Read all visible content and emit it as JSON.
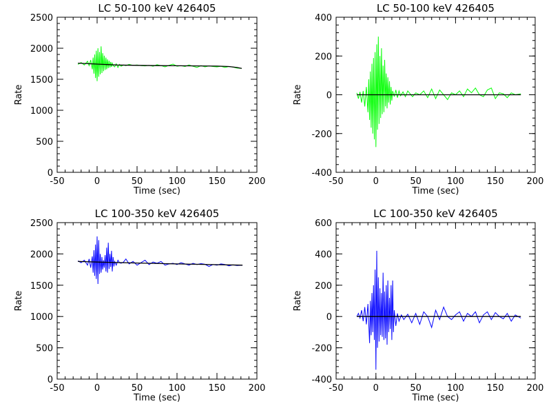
{
  "chart_data": [
    {
      "type": "line",
      "title": "LC 50-100 keV  426405",
      "xlabel": "Time (sec)",
      "ylabel": "Rate",
      "xlim": [
        -50,
        200
      ],
      "ylim": [
        0,
        2500
      ],
      "xticks": [
        -50,
        0,
        50,
        100,
        150,
        200
      ],
      "yticks": [
        0,
        500,
        1000,
        1500,
        2000,
        2500
      ],
      "series": [
        {
          "color": "#00ff00",
          "x": [
            -24,
            -20,
            -16,
            -12,
            -10,
            -8,
            -6,
            -5,
            -4,
            -3,
            -2,
            -1,
            0,
            1,
            2,
            3,
            4,
            5,
            6,
            7,
            8,
            9,
            10,
            11,
            12,
            13,
            14,
            15,
            16,
            17,
            18,
            19,
            20,
            22,
            24,
            26,
            28,
            30,
            33,
            36,
            40,
            45,
            50,
            55,
            60,
            65,
            70,
            75,
            80,
            85,
            90,
            95,
            100,
            105,
            110,
            115,
            120,
            125,
            130,
            135,
            140,
            145,
            150,
            155,
            160,
            165,
            170,
            175,
            181
          ],
          "y": [
            1740,
            1770,
            1730,
            1790,
            1720,
            1810,
            1660,
            1850,
            1590,
            1900,
            1520,
            1960,
            1470,
            2000,
            1540,
            1940,
            1580,
            2030,
            1600,
            1920,
            1630,
            1880,
            1650,
            1850,
            1660,
            1820,
            1680,
            1800,
            1690,
            1780,
            1700,
            1760,
            1720,
            1700,
            1750,
            1690,
            1740,
            1710,
            1730,
            1720,
            1740,
            1725,
            1730,
            1720,
            1715,
            1725,
            1710,
            1735,
            1720,
            1700,
            1725,
            1745,
            1710,
            1720,
            1705,
            1730,
            1710,
            1690,
            1720,
            1700,
            1715,
            1705,
            1700,
            1710,
            1690,
            1705,
            1695,
            1680,
            1675
          ]
        },
        {
          "color": "#000000",
          "x": [
            -24,
            0,
            25,
            50,
            75,
            100,
            125,
            150,
            165,
            175,
            181
          ],
          "y": [
            1760,
            1745,
            1730,
            1725,
            1720,
            1718,
            1715,
            1712,
            1705,
            1690,
            1675
          ]
        }
      ]
    },
    {
      "type": "line",
      "title": "LC 50-100 keV  426405",
      "xlabel": "Time (sec)",
      "ylabel": "Rate",
      "xlim": [
        -50,
        200
      ],
      "ylim": [
        -400,
        400
      ],
      "xticks": [
        -50,
        0,
        50,
        100,
        150,
        200
      ],
      "yticks": [
        -400,
        -200,
        0,
        200,
        400
      ],
      "series": [
        {
          "color": "#00ff00",
          "x": [
            -24,
            -22,
            -20,
            -18,
            -16,
            -14,
            -12,
            -10,
            -9,
            -8,
            -7,
            -6,
            -5,
            -4,
            -3,
            -2,
            -1,
            0,
            1,
            2,
            3,
            4,
            5,
            6,
            7,
            8,
            9,
            10,
            11,
            12,
            13,
            14,
            15,
            16,
            17,
            18,
            19,
            20,
            21,
            23,
            25,
            27,
            29,
            31,
            34,
            37,
            40,
            43,
            46,
            50,
            55,
            60,
            65,
            70,
            75,
            80,
            85,
            90,
            95,
            100,
            105,
            110,
            115,
            120,
            125,
            130,
            135,
            140,
            145,
            150,
            155,
            160,
            165,
            170,
            175,
            182
          ],
          "y": [
            10,
            -20,
            15,
            -40,
            20,
            -60,
            40,
            -90,
            80,
            -130,
            120,
            -170,
            160,
            -200,
            190,
            -230,
            220,
            -270,
            260,
            -180,
            300,
            -150,
            200,
            -120,
            240,
            -100,
            150,
            -90,
            180,
            -60,
            110,
            -70,
            90,
            -40,
            70,
            -50,
            40,
            -30,
            20,
            -10,
            25,
            -15,
            20,
            -5,
            15,
            -10,
            20,
            5,
            -10,
            10,
            0,
            20,
            -15,
            30,
            -20,
            25,
            0,
            -25,
            10,
            0,
            20,
            -10,
            30,
            10,
            35,
            0,
            -10,
            25,
            35,
            -20,
            10,
            5,
            -15,
            10,
            0,
            5
          ]
        },
        {
          "color": "#000000",
          "x": [
            -24,
            182
          ],
          "y": [
            0,
            0
          ]
        }
      ]
    },
    {
      "type": "line",
      "title": "LC 100-350 keV  426405",
      "xlabel": "Time (sec)",
      "ylabel": "Rate",
      "xlim": [
        -50,
        200
      ],
      "ylim": [
        0,
        2500
      ],
      "xticks": [
        -50,
        0,
        50,
        100,
        150,
        200
      ],
      "yticks": [
        0,
        500,
        1000,
        1500,
        2000,
        2500
      ],
      "series": [
        {
          "color": "#0000ff",
          "x": [
            -24,
            -20,
            -16,
            -12,
            -10,
            -8,
            -6,
            -5,
            -4,
            -3,
            -2,
            -1,
            0,
            1,
            2,
            3,
            4,
            5,
            6,
            7,
            8,
            9,
            10,
            11,
            12,
            13,
            14,
            15,
            16,
            17,
            18,
            19,
            20,
            21,
            22,
            24,
            26,
            28,
            30,
            33,
            36,
            40,
            45,
            50,
            55,
            60,
            65,
            70,
            75,
            80,
            85,
            90,
            95,
            100,
            105,
            110,
            115,
            120,
            125,
            130,
            135,
            140,
            145,
            150,
            155,
            160,
            165,
            170,
            175,
            182
          ],
          "y": [
            1890,
            1860,
            1900,
            1820,
            1920,
            1780,
            1960,
            1700,
            2060,
            1650,
            2150,
            1600,
            2280,
            1520,
            2220,
            1680,
            2000,
            1700,
            1950,
            1750,
            1900,
            1780,
            1980,
            1720,
            2100,
            1700,
            2180,
            1760,
            2000,
            1790,
            2050,
            1720,
            1950,
            1800,
            1880,
            1820,
            1900,
            1860,
            1850,
            1870,
            1920,
            1840,
            1880,
            1820,
            1860,
            1900,
            1830,
            1870,
            1850,
            1880,
            1820,
            1840,
            1850,
            1830,
            1860,
            1840,
            1820,
            1850,
            1830,
            1845,
            1835,
            1800,
            1830,
            1820,
            1840,
            1830,
            1810,
            1825,
            1815,
            1820
          ]
        },
        {
          "color": "#000000",
          "x": [
            -24,
            0,
            50,
            100,
            150,
            182
          ],
          "y": [
            1880,
            1870,
            1855,
            1840,
            1828,
            1820
          ]
        }
      ]
    },
    {
      "type": "line",
      "title": "LC 100-350 keV  426405",
      "xlabel": "Time (sec)",
      "ylabel": "Rate",
      "xlim": [
        -50,
        200
      ],
      "ylim": [
        -400,
        600
      ],
      "xticks": [
        -50,
        0,
        50,
        100,
        150,
        200
      ],
      "yticks": [
        -400,
        -200,
        0,
        200,
        400,
        600
      ],
      "series": [
        {
          "color": "#0000ff",
          "x": [
            -24,
            -22,
            -20,
            -18,
            -16,
            -14,
            -12,
            -10,
            -8,
            -7,
            -6,
            -5,
            -4,
            -3,
            -2,
            -1,
            0,
            1,
            2,
            3,
            4,
            5,
            6,
            7,
            8,
            9,
            10,
            11,
            12,
            13,
            14,
            15,
            16,
            17,
            18,
            19,
            20,
            21,
            22,
            23,
            25,
            27,
            29,
            32,
            35,
            40,
            45,
            50,
            55,
            60,
            65,
            70,
            75,
            80,
            85,
            90,
            95,
            100,
            105,
            110,
            115,
            120,
            125,
            130,
            135,
            140,
            145,
            150,
            155,
            160,
            165,
            170,
            175,
            182
          ],
          "y": [
            0,
            20,
            -10,
            40,
            -30,
            60,
            -50,
            80,
            -170,
            100,
            -120,
            150,
            -100,
            200,
            -150,
            300,
            -340,
            420,
            -200,
            250,
            -160,
            180,
            -120,
            150,
            -130,
            280,
            -150,
            160,
            -140,
            200,
            -180,
            230,
            -100,
            120,
            -80,
            200,
            -150,
            230,
            -100,
            40,
            -60,
            20,
            -30,
            10,
            -20,
            15,
            -40,
            20,
            -50,
            30,
            0,
            -70,
            40,
            -20,
            60,
            0,
            -20,
            10,
            30,
            -30,
            20,
            0,
            30,
            -40,
            10,
            30,
            -20,
            25,
            0,
            -15,
            20,
            -30,
            10,
            -10
          ]
        },
        {
          "color": "#000000",
          "x": [
            -24,
            182
          ],
          "y": [
            0,
            0
          ]
        }
      ]
    }
  ]
}
